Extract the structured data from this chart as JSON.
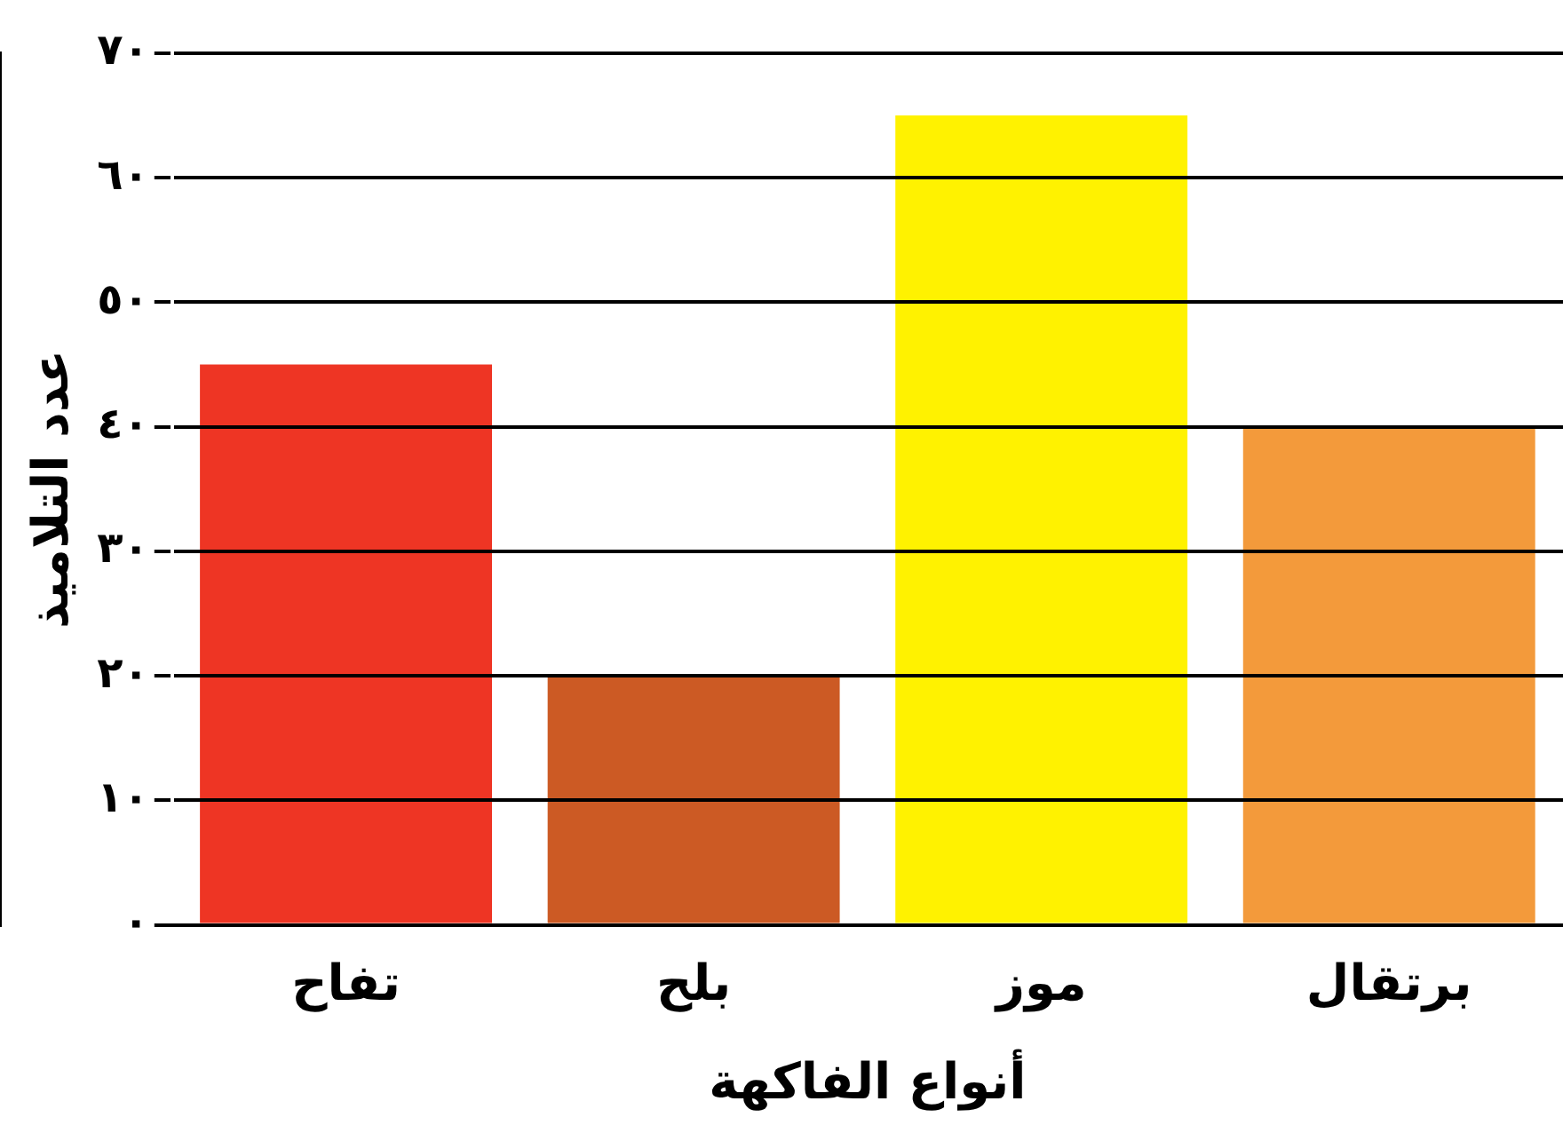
{
  "chart_data": {
    "type": "bar",
    "xlabel": "أنواع الفاكهة",
    "ylabel": "عدد التلاميذ",
    "categories": [
      "تفاح",
      "بلح",
      "موز",
      "برتقال"
    ],
    "values": [
      45,
      20,
      65,
      40
    ],
    "colors": [
      "#ee3524",
      "#cc5a24",
      "#fff200",
      "#f39a3b"
    ],
    "ylim": [
      0,
      70
    ],
    "yticks": [
      {
        "value": 0,
        "label": "٠"
      },
      {
        "value": 10,
        "label": "١٠"
      },
      {
        "value": 20,
        "label": "٢٠"
      },
      {
        "value": 30,
        "label": "٣٠"
      },
      {
        "value": 40,
        "label": "٤٠"
      },
      {
        "value": 50,
        "label": "٥٠"
      },
      {
        "value": 60,
        "label": "٦٠"
      },
      {
        "value": 70,
        "label": "٧٠"
      }
    ],
    "grid": "y",
    "legend": false
  }
}
